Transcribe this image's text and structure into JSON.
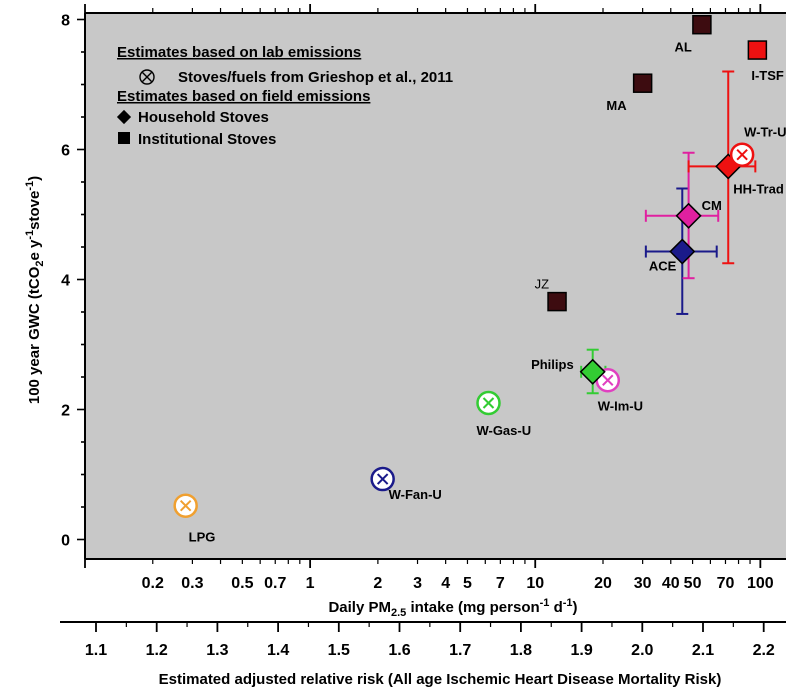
{
  "chart_data": {
    "type": "scatter",
    "colors": {
      "plot_background": "#c8c8c8",
      "institutional": "#3d0c10",
      "orange": "#f0a030",
      "navy": "#1a1a8a",
      "green": "#33cc33",
      "pink": "#e020a0",
      "red": "#ee1111",
      "magenta": "#e040c0"
    },
    "x_axis": {
      "label": "Daily PM",
      "label_sub": "2.5",
      "label_rest": " intake (mg person",
      "label_sup1": "-1",
      "label_rest2": " d",
      "label_sup2": "-1",
      "label_end": ")",
      "scale": "log",
      "range": [
        0.1,
        130
      ],
      "ticks": [
        {
          "v": 0.2,
          "t": "0.2"
        },
        {
          "v": 0.3,
          "t": "0.3"
        },
        {
          "v": 0.5,
          "t": "0.5"
        },
        {
          "v": 0.7,
          "t": "0.7"
        },
        {
          "v": 1,
          "t": "1"
        },
        {
          "v": 2,
          "t": "2"
        },
        {
          "v": 3,
          "t": "3"
        },
        {
          "v": 4,
          "t": "4"
        },
        {
          "v": 5,
          "t": "5"
        },
        {
          "v": 7,
          "t": "7"
        },
        {
          "v": 10,
          "t": "10"
        },
        {
          "v": 20,
          "t": "20"
        },
        {
          "v": 30,
          "t": "30"
        },
        {
          "v": 40,
          "t": "40"
        },
        {
          "v": 50,
          "t": "50"
        },
        {
          "v": 70,
          "t": "70"
        },
        {
          "v": 100,
          "t": "100"
        }
      ]
    },
    "y_axis": {
      "label": "100 year GWC (tCO",
      "label_sub": "2",
      "label_mid": "e y",
      "label_sup1": "-1",
      "label_mid2": "stove",
      "label_sup2": "-1",
      "label_end": ")",
      "range": [
        -0.3,
        8.1
      ],
      "ticks": [
        {
          "v": 0,
          "t": "0"
        },
        {
          "v": 2,
          "t": "2"
        },
        {
          "v": 4,
          "t": "4"
        },
        {
          "v": 6,
          "t": "6"
        },
        {
          "v": 8,
          "t": "8"
        }
      ]
    },
    "secondary_x_axis": {
      "label": "Estimated adjusted relative risk (All age Ischemic Heart Disease Mortality Risk)",
      "ticks": [
        "1.1",
        "1.2",
        "1.3",
        "1.4",
        "1.5",
        "1.6",
        "1.7",
        "1.8",
        "1.9",
        "2.0",
        "2.1",
        "2.2"
      ]
    },
    "legend": {
      "placement": "top-left",
      "heading_lab": "Estimates based on lab emissions",
      "lab_entry": "Stoves/fuels from Grieshop et al., 2011",
      "heading_field": "Estimates based on field emissions",
      "household": "Household Stoves",
      "institutional": "Institutional Stoves"
    },
    "lab_points": [
      {
        "label": "LPG",
        "x": 0.28,
        "y": 0.52,
        "color": "#f0a030"
      },
      {
        "label": "W-Fan-U",
        "x": 2.1,
        "y": 0.93,
        "color": "#1a1a8a"
      },
      {
        "label": "W-Gas-U",
        "x": 6.2,
        "y": 2.1,
        "color": "#33cc33"
      },
      {
        "label": "W-Im-U",
        "x": 21,
        "y": 2.45,
        "color": "#e040c0"
      },
      {
        "label": "W-Tr-U",
        "x": 83,
        "y": 5.92,
        "color": "#ee1111"
      }
    ],
    "household_points": [
      {
        "label": "Philips",
        "x": 18,
        "y": 2.58,
        "color": "#33cc33",
        "xerr": [
          16,
          20.5
        ],
        "yerr": [
          2.25,
          2.92
        ]
      },
      {
        "label": "ACE",
        "x": 45,
        "y": 4.43,
        "color": "#1a1a8a",
        "xerr": [
          31,
          64
        ],
        "yerr": [
          3.47,
          5.4
        ]
      },
      {
        "label": "CM",
        "x": 48,
        "y": 4.98,
        "color": "#e020a0",
        "xerr": [
          31,
          65
        ],
        "yerr": [
          4.02,
          5.95
        ]
      },
      {
        "label": "HH-Trad",
        "x": 72,
        "y": 5.74,
        "color": "#ee1111",
        "xerr": [
          48,
          95
        ],
        "yerr": [
          4.25,
          7.2
        ]
      }
    ],
    "institutional_points": [
      {
        "label": "AL",
        "x": 55,
        "y": 7.92,
        "color": "#3d0c10"
      },
      {
        "label": "I-TSF",
        "x": 97,
        "y": 7.53,
        "color": "#ee1111"
      },
      {
        "label": "MA",
        "x": 30,
        "y": 7.02,
        "color": "#3d0c10"
      },
      {
        "label": "JZ",
        "x": 12.5,
        "y": 3.66,
        "color": "#3d0c10"
      }
    ]
  }
}
